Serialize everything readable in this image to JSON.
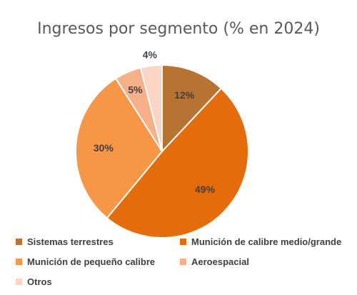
{
  "chart_data": {
    "type": "pie",
    "title": "Ingresos por segmento (% en 2024)",
    "categories": [
      "Sistemas terrestres",
      "Munición de calibre medio/grande",
      "Munición de pequeño calibre",
      "Aeroespacial",
      "Otros"
    ],
    "values": [
      12,
      49,
      30,
      5,
      4
    ],
    "data_labels": [
      "12%",
      "49%",
      "30%",
      "5%",
      "4%"
    ],
    "colors": [
      "#B87333",
      "#E46C0A",
      "#F79646",
      "#F5B08A",
      "#FBD5C3"
    ],
    "legend_position": "bottom",
    "start_angle": "12 o'clock, clockwise"
  }
}
